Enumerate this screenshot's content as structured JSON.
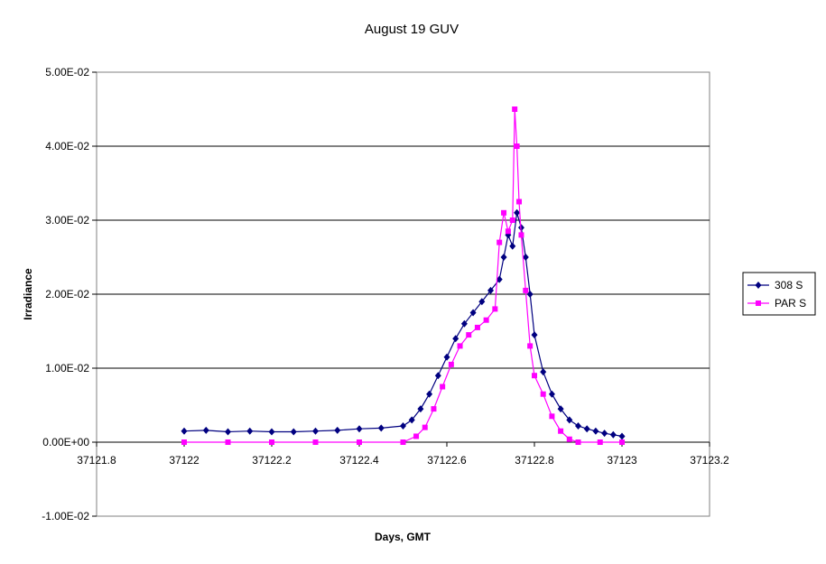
{
  "chart_data": {
    "type": "scatter",
    "title": "August 19 GUV",
    "xlabel": "Days, GMT",
    "ylabel": "Irradiance",
    "xlim": [
      37121.8,
      37123.2
    ],
    "ylim": [
      -0.01,
      0.05
    ],
    "x_ticks": [
      "37121.8",
      "37122",
      "37122.2",
      "37122.4",
      "37122.6",
      "37122.8",
      "37123",
      "37123.2"
    ],
    "y_ticks": [
      "-1.00E-02",
      "0.00E+00",
      "1.00E-02",
      "2.00E-02",
      "3.00E-02",
      "4.00E-02",
      "5.00E-02"
    ],
    "grid": "horizontal major gridlines",
    "legend_position": "right",
    "series": [
      {
        "name": "308 S",
        "color": "#000080",
        "marker": "diamond",
        "x": [
          37122.0,
          37122.05,
          37122.1,
          37122.15,
          37122.2,
          37122.25,
          37122.3,
          37122.35,
          37122.4,
          37122.45,
          37122.5,
          37122.52,
          37122.54,
          37122.56,
          37122.58,
          37122.6,
          37122.62,
          37122.64,
          37122.66,
          37122.68,
          37122.7,
          37122.72,
          37122.73,
          37122.74,
          37122.75,
          37122.76,
          37122.77,
          37122.78,
          37122.79,
          37122.8,
          37122.82,
          37122.84,
          37122.86,
          37122.88,
          37122.9,
          37122.92,
          37122.94,
          37122.96,
          37122.98,
          37123.0
        ],
        "y": [
          0.0015,
          0.0016,
          0.0014,
          0.0015,
          0.0014,
          0.0014,
          0.0015,
          0.0016,
          0.0018,
          0.0019,
          0.0022,
          0.003,
          0.0045,
          0.0065,
          0.009,
          0.0115,
          0.014,
          0.016,
          0.0175,
          0.019,
          0.0205,
          0.022,
          0.025,
          0.028,
          0.0265,
          0.031,
          0.029,
          0.025,
          0.02,
          0.0145,
          0.0095,
          0.0065,
          0.0045,
          0.003,
          0.0022,
          0.0018,
          0.0015,
          0.0012,
          0.001,
          0.0008
        ]
      },
      {
        "name": "PAR S",
        "color": "#FF00FF",
        "marker": "square",
        "x": [
          37122.0,
          37122.1,
          37122.2,
          37122.3,
          37122.4,
          37122.5,
          37122.53,
          37122.55,
          37122.57,
          37122.59,
          37122.61,
          37122.63,
          37122.65,
          37122.67,
          37122.69,
          37122.71,
          37122.72,
          37122.73,
          37122.74,
          37122.75,
          37122.755,
          37122.76,
          37122.765,
          37122.77,
          37122.78,
          37122.79,
          37122.8,
          37122.82,
          37122.84,
          37122.86,
          37122.88,
          37122.9,
          37122.95,
          37123.0
        ],
        "y": [
          0.0,
          0.0,
          0.0,
          0.0,
          0.0,
          0.0,
          0.0008,
          0.002,
          0.0045,
          0.0075,
          0.0105,
          0.013,
          0.0145,
          0.0155,
          0.0165,
          0.018,
          0.027,
          0.031,
          0.0285,
          0.03,
          0.045,
          0.04,
          0.0325,
          0.028,
          0.0205,
          0.013,
          0.009,
          0.0065,
          0.0035,
          0.0015,
          0.0004,
          0.0,
          0.0,
          0.0
        ]
      }
    ]
  }
}
